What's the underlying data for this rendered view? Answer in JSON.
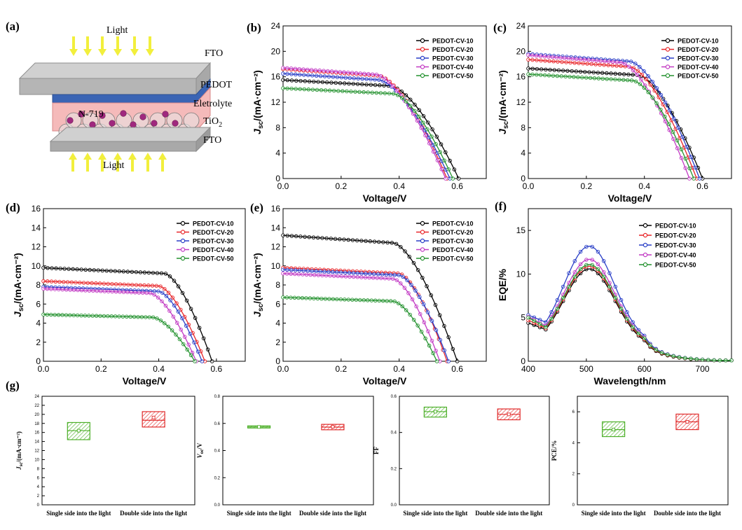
{
  "panel_labels": [
    "(a)",
    "(b)",
    "(c)",
    "(d)",
    "(e)",
    "(f)",
    "(g)"
  ],
  "diagram": {
    "labels": [
      "Light",
      "FTO",
      "PEDOT",
      "Eletrolyte",
      "N-719",
      "TiO",
      "2",
      "FTO",
      "Light"
    ],
    "colors": {
      "glass": "#c9c9c9",
      "pedot": "#3a64b4",
      "electrolyte": "#f2a6a6",
      "dye": "#a0287e",
      "arrow": "#f2ef3c"
    }
  },
  "series_names": [
    "PEDOT-CV-10",
    "PEDOT-CV-20",
    "PEDOT-CV-30",
    "PEDOT-CV-40",
    "PEDOT-CV-50"
  ],
  "series_colors": [
    "#000000",
    "#e8262a",
    "#2a3fc7",
    "#c23bc4",
    "#24922f"
  ],
  "chart_data": [
    {
      "id": "b",
      "type": "line",
      "xlabel": "Voltage/V",
      "ylabel": "J_sc/(mA·cm⁻²)",
      "xlim": [
        0,
        0.7
      ],
      "ylim": [
        0,
        24
      ],
      "xticks": [
        "0.0",
        "0.2",
        "0.4",
        "0.6"
      ],
      "yticks": [
        "0",
        "4",
        "8",
        "12",
        "16",
        "20",
        "24"
      ],
      "legend": "top-right",
      "series": [
        {
          "name": "PEDOT-CV-10",
          "jsc": 15.5,
          "voc": 0.605,
          "vk": 0.37
        },
        {
          "name": "PEDOT-CV-20",
          "jsc": 17.2,
          "voc": 0.565,
          "vk": 0.33
        },
        {
          "name": "PEDOT-CV-30",
          "jsc": 16.5,
          "voc": 0.575,
          "vk": 0.33
        },
        {
          "name": "PEDOT-CV-40",
          "jsc": 17.4,
          "voc": 0.56,
          "vk": 0.32
        },
        {
          "name": "PEDOT-CV-50",
          "jsc": 14.2,
          "voc": 0.585,
          "vk": 0.38
        }
      ]
    },
    {
      "id": "c",
      "type": "line",
      "xlabel": "Voltage/V",
      "ylabel": "J_sc/(mA·cm⁻²)",
      "xlim": [
        0,
        0.7
      ],
      "ylim": [
        0,
        24
      ],
      "xticks": [
        "0.0",
        "0.2",
        "0.4",
        "0.6"
      ],
      "yticks": [
        "0",
        "4",
        "8",
        "12",
        "16",
        "20",
        "24"
      ],
      "legend": "top-right",
      "series": [
        {
          "name": "PEDOT-CV-10",
          "jsc": 17.3,
          "voc": 0.6,
          "vk": 0.38
        },
        {
          "name": "PEDOT-CV-20",
          "jsc": 18.7,
          "voc": 0.58,
          "vk": 0.35
        },
        {
          "name": "PEDOT-CV-30",
          "jsc": 19.6,
          "voc": 0.59,
          "vk": 0.35
        },
        {
          "name": "PEDOT-CV-40",
          "jsc": 19.4,
          "voc": 0.555,
          "vk": 0.32
        },
        {
          "name": "PEDOT-CV-50",
          "jsc": 16.4,
          "voc": 0.57,
          "vk": 0.36
        }
      ]
    },
    {
      "id": "d",
      "type": "line",
      "xlabel": "Voltage/V",
      "ylabel": "J_sc/(mA·cm⁻²)",
      "xlim": [
        0,
        0.7
      ],
      "ylim": [
        0,
        16
      ],
      "xticks": [
        "0.0",
        "0.2",
        "0.4",
        "0.6"
      ],
      "yticks": [
        "0",
        "2",
        "4",
        "6",
        "8",
        "10",
        "12",
        "14",
        "16"
      ],
      "legend": "top-right",
      "series": [
        {
          "name": "PEDOT-CV-10",
          "jsc": 9.8,
          "voc": 0.585,
          "vk": 0.42
        },
        {
          "name": "PEDOT-CV-20",
          "jsc": 8.4,
          "voc": 0.56,
          "vk": 0.4
        },
        {
          "name": "PEDOT-CV-30",
          "jsc": 7.8,
          "voc": 0.55,
          "vk": 0.4
        },
        {
          "name": "PEDOT-CV-40",
          "jsc": 7.6,
          "voc": 0.53,
          "vk": 0.37
        },
        {
          "name": "PEDOT-CV-50",
          "jsc": 4.9,
          "voc": 0.525,
          "vk": 0.38
        }
      ]
    },
    {
      "id": "e",
      "type": "line",
      "xlabel": "Voltage/V",
      "ylabel": "J_sc/(mA·cm⁻²)",
      "xlim": [
        0,
        0.7
      ],
      "ylim": [
        0,
        16
      ],
      "xticks": [
        "0.0",
        "0.2",
        "0.4",
        "0.6"
      ],
      "yticks": [
        "0",
        "2",
        "4",
        "6",
        "8",
        "10",
        "12",
        "14",
        "16"
      ],
      "legend": "top-right",
      "series": [
        {
          "name": "PEDOT-CV-10",
          "jsc": 13.2,
          "voc": 0.6,
          "vk": 0.38
        },
        {
          "name": "PEDOT-CV-20",
          "jsc": 9.8,
          "voc": 0.565,
          "vk": 0.4
        },
        {
          "name": "PEDOT-CV-30",
          "jsc": 9.6,
          "voc": 0.57,
          "vk": 0.4
        },
        {
          "name": "PEDOT-CV-40",
          "jsc": 9.2,
          "voc": 0.54,
          "vk": 0.38
        },
        {
          "name": "PEDOT-CV-50",
          "jsc": 6.7,
          "voc": 0.53,
          "vk": 0.38
        }
      ]
    },
    {
      "id": "f",
      "type": "line",
      "xlabel": "Wavelength/nm",
      "ylabel": "EQE/%",
      "xlim": [
        400,
        750
      ],
      "ylim": [
        0,
        17.5
      ],
      "xticks": [
        "400",
        "500",
        "600",
        "700"
      ],
      "yticks": [
        "0",
        "5",
        "10",
        "15"
      ],
      "legend": "top-right",
      "series": [
        {
          "name": "PEDOT-CV-10",
          "peak": 10.6,
          "base": 4.4
        },
        {
          "name": "PEDOT-CV-20",
          "peak": 10.9,
          "base": 4.7
        },
        {
          "name": "PEDOT-CV-30",
          "peak": 13.2,
          "base": 5.3
        },
        {
          "name": "PEDOT-CV-40",
          "peak": 11.7,
          "base": 5.1
        },
        {
          "name": "PEDOT-CV-50",
          "peak": 11.1,
          "base": 5.0
        }
      ]
    },
    {
      "id": "g1",
      "type": "box",
      "ylabel": "J_sc/(mA·cm⁻²)",
      "ylim": [
        0,
        24
      ],
      "yticks": [
        "0",
        "2",
        "4",
        "6",
        "8",
        "10",
        "12",
        "14",
        "16",
        "18",
        "20",
        "22",
        "24"
      ],
      "categories": [
        "Single side into the light",
        "Double side into the light"
      ],
      "boxes": [
        {
          "q1": 14.4,
          "q3": 18.2,
          "median": 16.4,
          "mean": 16.4,
          "color": "#4caf28"
        },
        {
          "q1": 17.2,
          "q3": 20.6,
          "median": 18.7,
          "mean": 19.3,
          "color": "#e02a2a"
        }
      ]
    },
    {
      "id": "g2",
      "type": "box",
      "ylabel": "V_oc/V",
      "ylim": [
        0,
        0.8
      ],
      "yticks": [
        "0.0",
        "0.2",
        "0.4",
        "0.6",
        "0.8"
      ],
      "categories": [
        "Single side into the light",
        "Double side into the light"
      ],
      "boxes": [
        {
          "q1": 0.566,
          "q3": 0.582,
          "median": 0.574,
          "mean": 0.574,
          "color": "#4caf28"
        },
        {
          "q1": 0.553,
          "q3": 0.593,
          "median": 0.573,
          "mean": 0.575,
          "color": "#e02a2a"
        }
      ]
    },
    {
      "id": "g3",
      "type": "box",
      "ylabel": "FF",
      "ylim": [
        0,
        0.6
      ],
      "yticks": [
        "0.0",
        "0.2",
        "0.4",
        "0.6"
      ],
      "categories": [
        "Single side into the light",
        "Double side into the light"
      ],
      "boxes": [
        {
          "q1": 0.485,
          "q3": 0.54,
          "median": 0.515,
          "mean": 0.515,
          "color": "#4caf28"
        },
        {
          "q1": 0.47,
          "q3": 0.53,
          "median": 0.5,
          "mean": 0.5,
          "color": "#e02a2a"
        }
      ]
    },
    {
      "id": "g4",
      "type": "box",
      "ylabel": "PCE/%",
      "ylim": [
        0,
        7
      ],
      "yticks": [
        "0",
        "2",
        "4",
        "6"
      ],
      "categories": [
        "Single side into the light",
        "Double side into the light"
      ],
      "boxes": [
        {
          "q1": 4.4,
          "q3": 5.35,
          "median": 4.85,
          "mean": 4.85,
          "color": "#4caf28"
        },
        {
          "q1": 4.85,
          "q3": 5.85,
          "median": 5.35,
          "mean": 5.35,
          "color": "#e02a2a"
        }
      ]
    }
  ]
}
